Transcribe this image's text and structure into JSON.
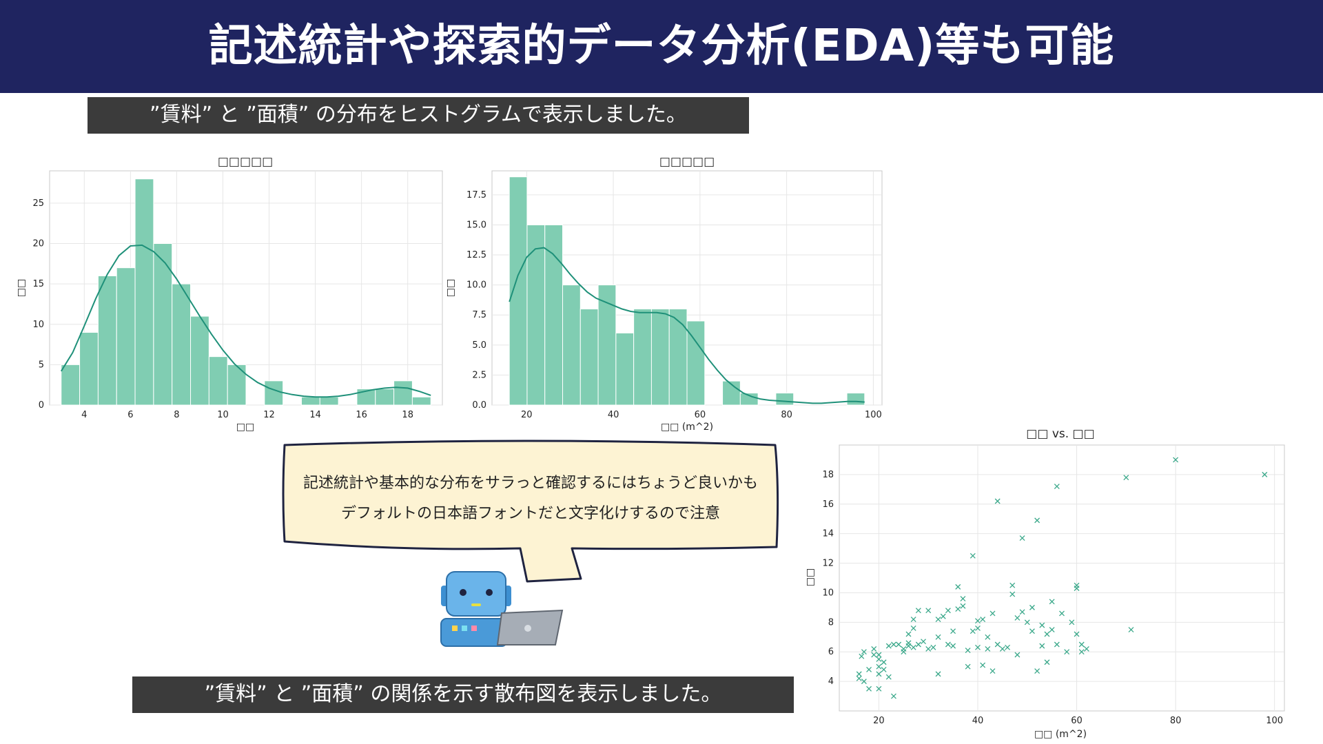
{
  "header": {
    "title": "記述統計や探索的データ分析(EDA)等も可能"
  },
  "captions": {
    "top": "”賃料” と ”面積” の分布をヒストグラムで表示しました。",
    "bottom": "”賃料” と ”面積” の関係を示す散布図を表示しました。"
  },
  "speech_bubble": {
    "line1": "記述統計や基本的な分布をサラっと確認するにはちょうど良いかも",
    "line2": "デフォルトの日本語フォントだと文字化けするので注意"
  },
  "colors": {
    "header_bg": "#1f2460",
    "caption_bg": "#3b3b3b",
    "bar": "#80cdb2",
    "kde": "#1e9079",
    "scatter": "#3aa88a",
    "bubble_bg": "#fdf3d3"
  },
  "chart_data": [
    {
      "type": "bar",
      "title": "□□□□□",
      "xlabel": "□□",
      "ylabel": "□□",
      "bin_edges": [
        3,
        3.8,
        4.6,
        5.4,
        6.2,
        7.0,
        7.8,
        8.6,
        9.4,
        10.2,
        11.0,
        11.8,
        12.6,
        13.4,
        14.2,
        15.0,
        15.8,
        16.6,
        17.4,
        18.2,
        19.0
      ],
      "values": [
        5,
        9,
        16,
        17,
        28,
        20,
        15,
        11,
        6,
        5,
        0,
        3,
        0,
        1,
        1,
        0,
        2,
        2,
        3,
        1
      ],
      "kde": {
        "x": [
          3,
          3.5,
          4,
          4.5,
          5,
          5.5,
          6,
          6.5,
          7,
          7.5,
          8,
          8.5,
          9,
          9.5,
          10,
          10.5,
          11,
          11.5,
          12,
          12.5,
          13,
          13.5,
          14,
          14.5,
          15,
          15.5,
          16,
          16.5,
          17,
          17.5,
          18,
          18.5,
          19
        ],
        "y": [
          4.2,
          6.5,
          9.8,
          13.2,
          16.2,
          18.5,
          19.7,
          19.8,
          19.0,
          17.6,
          15.6,
          13.3,
          11.0,
          8.8,
          6.8,
          5.1,
          3.8,
          2.8,
          2.1,
          1.6,
          1.3,
          1.1,
          1.0,
          1.0,
          1.1,
          1.3,
          1.6,
          1.9,
          2.1,
          2.2,
          2.1,
          1.7,
          1.2
        ]
      },
      "xlim": [
        2.5,
        19.5
      ],
      "ylim": [
        0,
        29
      ],
      "xticks": [
        4,
        6,
        8,
        10,
        12,
        14,
        16,
        18
      ],
      "yticks": [
        0,
        5,
        10,
        15,
        20,
        25
      ],
      "ytick_labels": [
        "0",
        "5",
        "10",
        "15",
        "20",
        "25"
      ],
      "grid": true
    },
    {
      "type": "bar",
      "title": "□□□□□",
      "xlabel": "□□ (m^2)",
      "ylabel": "□□",
      "bin_edges": [
        16,
        20.1,
        24.2,
        28.3,
        32.4,
        36.5,
        40.6,
        44.7,
        48.8,
        52.9,
        57.0,
        61.1,
        65.2,
        69.3,
        73.4,
        77.5,
        81.6,
        85.7,
        89.8,
        93.9,
        98.0
      ],
      "values": [
        19,
        15,
        15,
        10,
        8,
        10,
        6,
        8,
        8,
        8,
        7,
        0,
        2,
        1,
        0,
        1,
        0,
        0,
        0,
        1
      ],
      "kde": {
        "x": [
          16,
          18,
          20,
          22,
          24,
          26,
          28,
          30,
          32,
          34,
          36,
          38,
          40,
          42,
          44,
          46,
          48,
          50,
          52,
          54,
          56,
          58,
          60,
          62,
          64,
          66,
          68,
          70,
          72,
          74,
          76,
          78,
          80,
          82,
          84,
          86,
          88,
          90,
          92,
          94,
          96,
          98
        ],
        "y": [
          8.6,
          10.8,
          12.3,
          13.0,
          13.1,
          12.6,
          11.8,
          10.9,
          10.1,
          9.4,
          8.9,
          8.6,
          8.3,
          8.0,
          7.8,
          7.7,
          7.7,
          7.7,
          7.6,
          7.3,
          6.7,
          5.8,
          4.8,
          3.8,
          2.9,
          2.1,
          1.5,
          1.0,
          0.7,
          0.5,
          0.4,
          0.35,
          0.3,
          0.25,
          0.2,
          0.15,
          0.15,
          0.2,
          0.25,
          0.3,
          0.3,
          0.25
        ]
      },
      "xlim": [
        12,
        102
      ],
      "ylim": [
        0,
        19.5
      ],
      "xticks": [
        20,
        40,
        60,
        80,
        100
      ],
      "yticks": [
        0,
        2.5,
        5,
        7.5,
        10,
        12.5,
        15,
        17.5
      ],
      "ytick_labels": [
        "0.0",
        "2.5",
        "5.0",
        "7.5",
        "10.0",
        "12.5",
        "15.0",
        "17.5"
      ],
      "grid": true
    },
    {
      "type": "scatter",
      "title": "□□ vs. □□",
      "xlabel": "□□ (m^2)",
      "ylabel": "□□",
      "marker": "x",
      "points": [
        [
          16,
          4.2
        ],
        [
          16,
          4.5
        ],
        [
          16.5,
          5.7
        ],
        [
          17,
          4.0
        ],
        [
          17,
          6.0
        ],
        [
          18,
          3.5
        ],
        [
          18,
          4.8
        ],
        [
          19,
          5.8
        ],
        [
          19,
          6.2
        ],
        [
          20,
          3.5
        ],
        [
          20,
          4.5
        ],
        [
          20,
          5.0
        ],
        [
          20,
          5.5
        ],
        [
          20,
          5.8
        ],
        [
          21,
          4.8
        ],
        [
          21,
          5.3
        ],
        [
          22,
          6.4
        ],
        [
          22,
          4.3
        ],
        [
          23,
          3.0
        ],
        [
          23,
          6.5
        ],
        [
          24,
          6.5
        ],
        [
          25,
          6.0
        ],
        [
          25,
          6.2
        ],
        [
          26,
          6.4
        ],
        [
          26,
          6.6
        ],
        [
          26,
          7.2
        ],
        [
          27,
          6.3
        ],
        [
          27,
          7.6
        ],
        [
          27,
          8.2
        ],
        [
          28,
          8.8
        ],
        [
          28,
          6.5
        ],
        [
          29,
          6.7
        ],
        [
          30,
          8.8
        ],
        [
          30,
          6.2
        ],
        [
          31,
          6.3
        ],
        [
          32,
          7.0
        ],
        [
          32,
          8.2
        ],
        [
          32,
          4.5
        ],
        [
          33,
          8.4
        ],
        [
          34,
          6.5
        ],
        [
          34,
          8.8
        ],
        [
          35,
          6.4
        ],
        [
          35,
          7.4
        ],
        [
          36,
          8.9
        ],
        [
          36,
          10.4
        ],
        [
          37,
          9.1
        ],
        [
          37,
          9.6
        ],
        [
          38,
          6.1
        ],
        [
          38,
          5.0
        ],
        [
          39,
          12.5
        ],
        [
          39,
          7.4
        ],
        [
          40,
          7.6
        ],
        [
          40,
          8.1
        ],
        [
          40,
          6.3
        ],
        [
          41,
          5.1
        ],
        [
          41,
          8.2
        ],
        [
          42,
          6.2
        ],
        [
          42,
          7.0
        ],
        [
          43,
          4.7
        ],
        [
          43,
          8.6
        ],
        [
          44,
          16.2
        ],
        [
          44,
          6.5
        ],
        [
          45,
          6.2
        ],
        [
          46,
          6.3
        ],
        [
          47,
          9.9
        ],
        [
          47,
          10.5
        ],
        [
          48,
          8.3
        ],
        [
          48,
          5.8
        ],
        [
          49,
          13.7
        ],
        [
          49,
          8.7
        ],
        [
          50,
          8.0
        ],
        [
          51,
          9.0
        ],
        [
          51,
          7.4
        ],
        [
          52,
          14.9
        ],
        [
          52,
          4.7
        ],
        [
          53,
          7.8
        ],
        [
          53,
          6.4
        ],
        [
          54,
          5.3
        ],
        [
          54,
          7.2
        ],
        [
          55,
          9.4
        ],
        [
          55,
          7.5
        ],
        [
          56,
          17.2
        ],
        [
          56,
          6.5
        ],
        [
          57,
          8.6
        ],
        [
          58,
          6.0
        ],
        [
          59,
          8.0
        ],
        [
          60,
          7.2
        ],
        [
          60,
          10.3
        ],
        [
          60,
          10.5
        ],
        [
          61,
          6.5
        ],
        [
          61,
          6.0
        ],
        [
          62,
          6.2
        ],
        [
          70,
          17.8
        ],
        [
          71,
          7.5
        ],
        [
          80,
          19.0
        ],
        [
          98,
          18.0
        ]
      ],
      "xlim": [
        12,
        102
      ],
      "ylim": [
        2,
        20
      ],
      "xticks": [
        20,
        40,
        60,
        80,
        100
      ],
      "yticks": [
        4,
        6,
        8,
        10,
        12,
        14,
        16,
        18
      ],
      "grid": true
    }
  ]
}
